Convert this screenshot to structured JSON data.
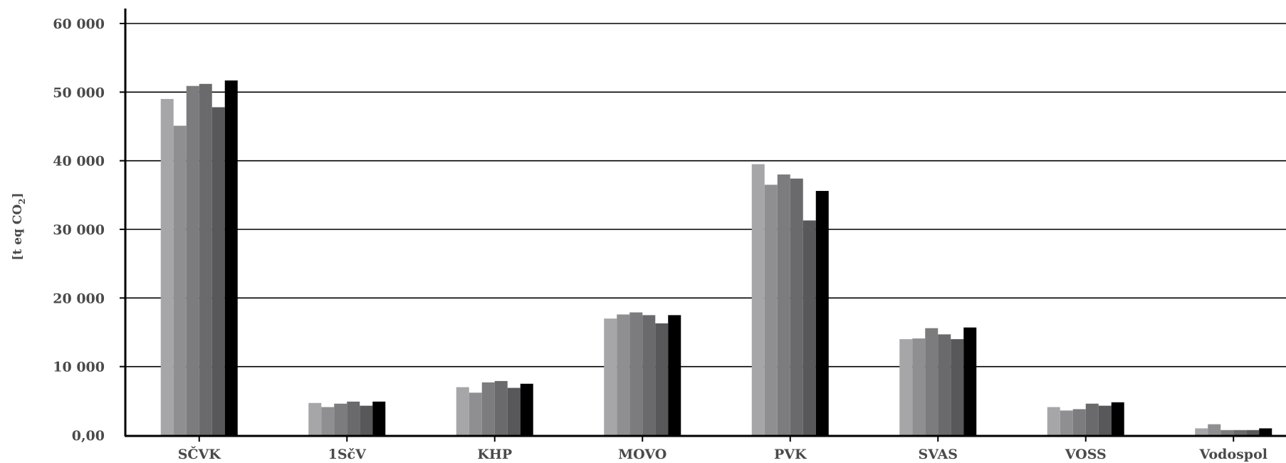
{
  "chart_data": {
    "type": "bar",
    "ylabel": "[t eq CO",
    "ylabel_subscript": "2",
    "ylabel_close": "]",
    "ylim": [
      0,
      60000
    ],
    "yticks": [
      0,
      10000,
      20000,
      30000,
      40000,
      50000,
      60000
    ],
    "ytick_labels": [
      "0,00",
      "10 000",
      "20 000",
      "30 000",
      "40 000",
      "50 000",
      "60 000"
    ],
    "grid": "horizontal",
    "categories": [
      "SČVK",
      "1SčV",
      "KHP",
      "MOVO",
      "PVK",
      "SVAS",
      "VOSS",
      "Vodospol"
    ],
    "series": [
      {
        "color": "#a6a6a8",
        "values": [
          49000,
          4700,
          7000,
          17000,
          39500,
          14000,
          4100,
          1000
        ]
      },
      {
        "color": "#8f8f91",
        "values": [
          45100,
          4100,
          6200,
          17600,
          36500,
          14100,
          3600,
          1600
        ]
      },
      {
        "color": "#7c7c7e",
        "values": [
          50900,
          4600,
          7700,
          17900,
          38000,
          15600,
          3800,
          750
        ]
      },
      {
        "color": "#6a6a6c",
        "values": [
          51200,
          4900,
          7900,
          17500,
          37400,
          14700,
          4600,
          750
        ]
      },
      {
        "color": "#58585a",
        "values": [
          47800,
          4300,
          6900,
          16300,
          31300,
          14000,
          4300,
          750
        ]
      },
      {
        "color": "#000000",
        "values": [
          51700,
          4900,
          7500,
          17500,
          35600,
          15700,
          4800,
          1000
        ]
      }
    ]
  }
}
